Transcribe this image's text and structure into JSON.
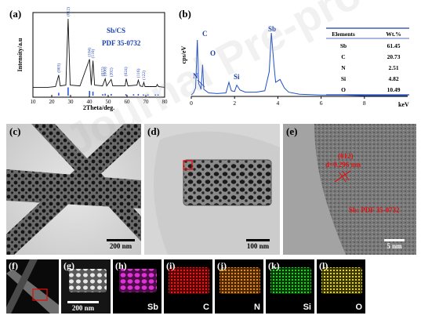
{
  "panels": {
    "a": {
      "label": "(a)",
      "legend_sample": "Sb/CS",
      "legend_ref": "PDF 35-0732",
      "peak_labels": [
        "(003)",
        "(012)",
        "(104)",
        "(110)",
        "(015)",
        "(006)",
        "(202)",
        "(024)",
        "(116)",
        "(122)"
      ]
    },
    "b": {
      "label": "(b)",
      "element_labels": {
        "C": "C",
        "O": "O",
        "N": "N",
        "Si": "Si",
        "Sb": "Sb"
      },
      "table_headers": [
        "Elements",
        "Wt.%"
      ],
      "table_rows": [
        [
          "Sb",
          "61.45"
        ],
        [
          "C",
          "20.73"
        ],
        [
          "N",
          "2.51"
        ],
        [
          "Si",
          "4.82"
        ],
        [
          "O",
          "10.49"
        ]
      ]
    },
    "c": {
      "label": "(c)",
      "scale": "200 nm"
    },
    "d": {
      "label": "(d)",
      "scale": "100 nm"
    },
    "e": {
      "label": "(e)",
      "plane": "(012)",
      "spacing": "d=0.296 nm",
      "ref": "Sb: PDF 35-0732",
      "scale": "5 nm"
    },
    "f": {
      "label": "(f)"
    },
    "g": {
      "label": "(g)",
      "scale": "200 nm"
    },
    "h": {
      "label": "(h)",
      "element": "Sb",
      "color": "#d21ec8"
    },
    "i": {
      "label": "(i)",
      "element": "C",
      "color": "#e01010"
    },
    "j": {
      "label": "(j)",
      "element": "N",
      "color": "#e8800a"
    },
    "k": {
      "label": "(k)",
      "element": "Si",
      "color": "#20b020"
    },
    "l": {
      "label": "(l)",
      "element": "O",
      "color": "#d8c810"
    }
  },
  "watermark": "Journal Pre-proof",
  "chart_data": [
    {
      "type": "line",
      "panel": "a",
      "xlabel": "2Theta/deg.",
      "ylabel": "Intensity/a.u",
      "xlim": [
        10,
        80
      ],
      "x_ticks": [
        10,
        20,
        30,
        40,
        50,
        60,
        70,
        80
      ],
      "grid": false,
      "series": [
        {
          "values": [
            [
              10,
              0.05
            ],
            [
              18,
              0.05
            ],
            [
              22,
              0.06
            ],
            [
              23.7,
              0.22
            ],
            [
              24.5,
              0.07
            ],
            [
              27.5,
              0.08
            ],
            [
              28.7,
              1.0
            ],
            [
              29.8,
              0.08
            ],
            [
              35,
              0.07
            ],
            [
              40.1,
              0.44
            ],
            [
              41.0,
              0.08
            ],
            [
              41.9,
              0.42
            ],
            [
              42.8,
              0.08
            ],
            [
              47,
              0.07
            ],
            [
              48.4,
              0.17
            ],
            [
              49.2,
              0.07
            ],
            [
              51.6,
              0.16
            ],
            [
              52.4,
              0.07
            ],
            [
              59,
              0.07
            ],
            [
              59.6,
              0.17
            ],
            [
              60.5,
              0.07
            ],
            [
              65.3,
              0.08
            ],
            [
              66.0,
              0.15
            ],
            [
              66.9,
              0.07
            ],
            [
              68.3,
              0.06
            ],
            [
              68.9,
              0.12
            ],
            [
              69.6,
              0.06
            ],
            [
              75.5,
              0.06
            ],
            [
              76.1,
              0.09
            ],
            [
              76.7,
              0.06
            ],
            [
              80,
              0.05
            ]
          ]
        }
      ],
      "reference_sticks": [
        [
          23.7,
          0.12
        ],
        [
          28.7,
          0.35
        ],
        [
          40.1,
          0.2
        ],
        [
          41.9,
          0.17
        ],
        [
          47.1,
          0.06
        ],
        [
          48.4,
          0.08
        ],
        [
          51.6,
          0.07
        ],
        [
          59.4,
          0.06
        ],
        [
          63.5,
          0.06
        ],
        [
          66.0,
          0.07
        ],
        [
          68.7,
          0.05
        ],
        [
          71.1,
          0.05
        ],
        [
          75.1,
          0.05
        ],
        [
          76.5,
          0.05
        ]
      ]
    },
    {
      "type": "line",
      "panel": "b",
      "xlabel": "keV",
      "ylabel": "cps/eV",
      "xlim": [
        0,
        10
      ],
      "x_ticks": [
        0,
        2,
        4,
        6,
        8
      ],
      "grid": false,
      "series": [
        {
          "values": [
            [
              0,
              0.02
            ],
            [
              0.1,
              0.05
            ],
            [
              0.2,
              0.12
            ],
            [
              0.28,
              0.8
            ],
            [
              0.34,
              0.18
            ],
            [
              0.39,
              0.15
            ],
            [
              0.45,
              0.1
            ],
            [
              0.52,
              0.45
            ],
            [
              0.58,
              0.1
            ],
            [
              0.8,
              0.05
            ],
            [
              1.2,
              0.04
            ],
            [
              1.6,
              0.05
            ],
            [
              1.74,
              0.2
            ],
            [
              1.85,
              0.08
            ],
            [
              2.0,
              0.07
            ],
            [
              2.1,
              0.16
            ],
            [
              2.25,
              0.09
            ],
            [
              2.5,
              0.06
            ],
            [
              3.0,
              0.06
            ],
            [
              3.4,
              0.08
            ],
            [
              3.6,
              0.35
            ],
            [
              3.7,
              0.9
            ],
            [
              3.82,
              0.45
            ],
            [
              3.9,
              0.2
            ],
            [
              4.1,
              0.24
            ],
            [
              4.3,
              0.12
            ],
            [
              4.5,
              0.06
            ],
            [
              5,
              0.03
            ],
            [
              6,
              0.02
            ],
            [
              7,
              0.02
            ],
            [
              8,
              0.01
            ],
            [
              10,
              0.01
            ]
          ]
        }
      ]
    }
  ]
}
